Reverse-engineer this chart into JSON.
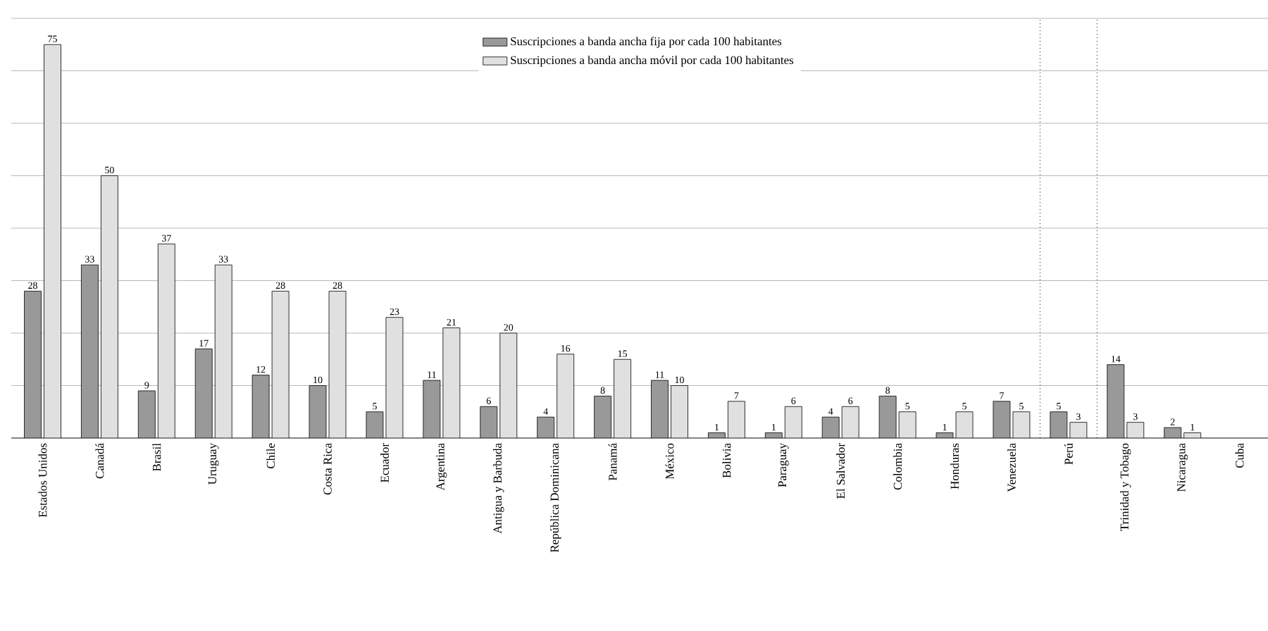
{
  "chart_data": {
    "type": "bar",
    "categories": [
      "Estados Unidos",
      "Canadá",
      "Brasil",
      "Uruguay",
      "Chile",
      "Costa Rica",
      "Ecuador",
      "Argentina",
      "Antigua y Barbuda",
      "República Dominicana",
      "Panamá",
      "México",
      "Bolivia",
      "Paraguay",
      "El Salvador",
      "Colombia",
      "Honduras",
      "Venezuela",
      "Perú",
      "Trinidad y Tobago",
      "Nicaragua",
      "Cuba"
    ],
    "series": [
      {
        "name": "Suscripciones a banda ancha fija por cada 100 habitantes",
        "color": "#999999",
        "values": [
          28,
          33,
          9,
          17,
          12,
          10,
          5,
          11,
          6,
          4,
          8,
          11,
          1,
          1,
          4,
          8,
          1,
          7,
          5,
          14,
          2,
          null
        ]
      },
      {
        "name": "Suscripciones a banda ancha móvil por cada 100 habitantes",
        "color": "#e0e0e0",
        "values": [
          75,
          50,
          37,
          33,
          28,
          28,
          23,
          21,
          20,
          16,
          15,
          10,
          7,
          6,
          6,
          5,
          5,
          5,
          3,
          3,
          1,
          null
        ]
      }
    ],
    "ylim": [
      0,
      80
    ],
    "yticks": [
      {
        "value": 0,
        "label": null
      },
      {
        "value": 10,
        "label": null
      },
      {
        "value": 20,
        "label": null
      },
      {
        "value": 30,
        "label": null
      },
      {
        "value": 40,
        "label": null
      },
      {
        "value": 50,
        "label": null
      },
      {
        "value": 60,
        "label": null
      },
      {
        "value": 70,
        "label": null
      },
      {
        "value": 80,
        "label": null
      }
    ],
    "tick_labels": "x",
    "grid": "y",
    "legend": "top",
    "data_labels": true
  }
}
